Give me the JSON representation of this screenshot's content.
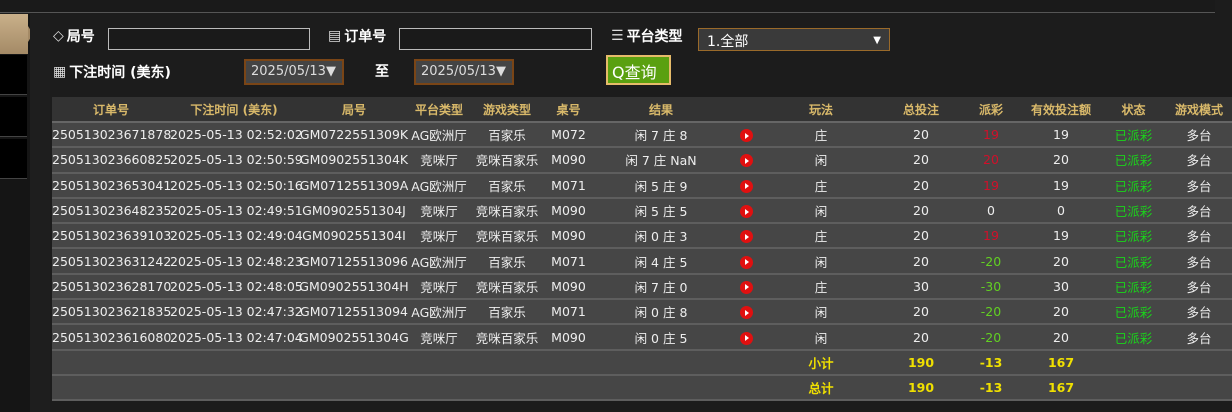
{
  "filters": {
    "round_label": "局号",
    "round_value": "",
    "order_label": "订单号",
    "order_value": "",
    "platform_label": "平台类型",
    "platform_selected": "1.全部",
    "time_label": "下注时间 (美东)",
    "date_from": "2025/05/13",
    "date_to": "2025/05/13",
    "to_label": "至",
    "query_label": "查询"
  },
  "table": {
    "headers": [
      "订单号",
      "下注时间 (美东)",
      "局号",
      "平台类型",
      "游戏类型",
      "桌号",
      "结果",
      "",
      "玩法",
      "总投注",
      "派彩",
      "有效投注额",
      "状态",
      "游戏模式"
    ],
    "rows": [
      {
        "order": "250513023671878",
        "time": "2025-05-13 02:52:02",
        "round": "GM0722551309K",
        "platform": "AG欧洲厅",
        "game": "百家乐",
        "table": "M072",
        "result": "闲 7 庄 8",
        "play": "庄",
        "bet": "20",
        "payout": "19",
        "valid": "19",
        "status": "已派彩",
        "mode": "多台"
      },
      {
        "order": "250513023660825",
        "time": "2025-05-13 02:50:59",
        "round": "GM0902551304K",
        "platform": "竞咪厅",
        "game": "竞咪百家乐",
        "table": "M090",
        "result": "闲 7 庄 NaN",
        "play": "闲",
        "bet": "20",
        "payout": "20",
        "valid": "20",
        "status": "已派彩",
        "mode": "多台"
      },
      {
        "order": "250513023653041",
        "time": "2025-05-13 02:50:16",
        "round": "GM0712551309A",
        "platform": "AG欧洲厅",
        "game": "百家乐",
        "table": "M071",
        "result": "闲 5 庄 9",
        "play": "庄",
        "bet": "20",
        "payout": "19",
        "valid": "19",
        "status": "已派彩",
        "mode": "多台"
      },
      {
        "order": "250513023648235",
        "time": "2025-05-13 02:49:51",
        "round": "GM0902551304J",
        "platform": "竞咪厅",
        "game": "竞咪百家乐",
        "table": "M090",
        "result": "闲 5 庄 5",
        "play": "闲",
        "bet": "20",
        "payout": "0",
        "valid": "0",
        "status": "已派彩",
        "mode": "多台"
      },
      {
        "order": "250513023639103",
        "time": "2025-05-13 02:49:04",
        "round": "GM0902551304I",
        "platform": "竞咪厅",
        "game": "竞咪百家乐",
        "table": "M090",
        "result": "闲 0 庄 3",
        "play": "庄",
        "bet": "20",
        "payout": "19",
        "valid": "19",
        "status": "已派彩",
        "mode": "多台"
      },
      {
        "order": "250513023631242",
        "time": "2025-05-13 02:48:23",
        "round": "GM07125513096",
        "platform": "AG欧洲厅",
        "game": "百家乐",
        "table": "M071",
        "result": "闲 4 庄 5",
        "play": "闲",
        "bet": "20",
        "payout": "-20",
        "valid": "20",
        "status": "已派彩",
        "mode": "多台"
      },
      {
        "order": "250513023628170",
        "time": "2025-05-13 02:48:05",
        "round": "GM0902551304H",
        "platform": "竞咪厅",
        "game": "竞咪百家乐",
        "table": "M090",
        "result": "闲 7 庄 0",
        "play": "庄",
        "bet": "30",
        "payout": "-30",
        "valid": "30",
        "status": "已派彩",
        "mode": "多台"
      },
      {
        "order": "250513023621835",
        "time": "2025-05-13 02:47:32",
        "round": "GM07125513094",
        "platform": "AG欧洲厅",
        "game": "百家乐",
        "table": "M071",
        "result": "闲 0 庄 8",
        "play": "闲",
        "bet": "20",
        "payout": "-20",
        "valid": "20",
        "status": "已派彩",
        "mode": "多台"
      },
      {
        "order": "250513023616080",
        "time": "2025-05-13 02:47:04",
        "round": "GM0902551304G",
        "platform": "竞咪厅",
        "game": "竞咪百家乐",
        "table": "M090",
        "result": "闲 0 庄 5",
        "play": "闲",
        "bet": "20",
        "payout": "-20",
        "valid": "20",
        "status": "已派彩",
        "mode": "多台"
      }
    ],
    "subtotal": {
      "label": "小计",
      "bet": "190",
      "payout": "-13",
      "valid": "167"
    },
    "total": {
      "label": "总计",
      "bet": "190",
      "payout": "-13",
      "valid": "167"
    }
  },
  "colors": {
    "header_text": "#d9b96a",
    "win_payout": "#d0102a",
    "loss_payout": "#62d022",
    "status": "#1ad41a",
    "total": "#f0e000",
    "query_button": "#5aa010"
  }
}
